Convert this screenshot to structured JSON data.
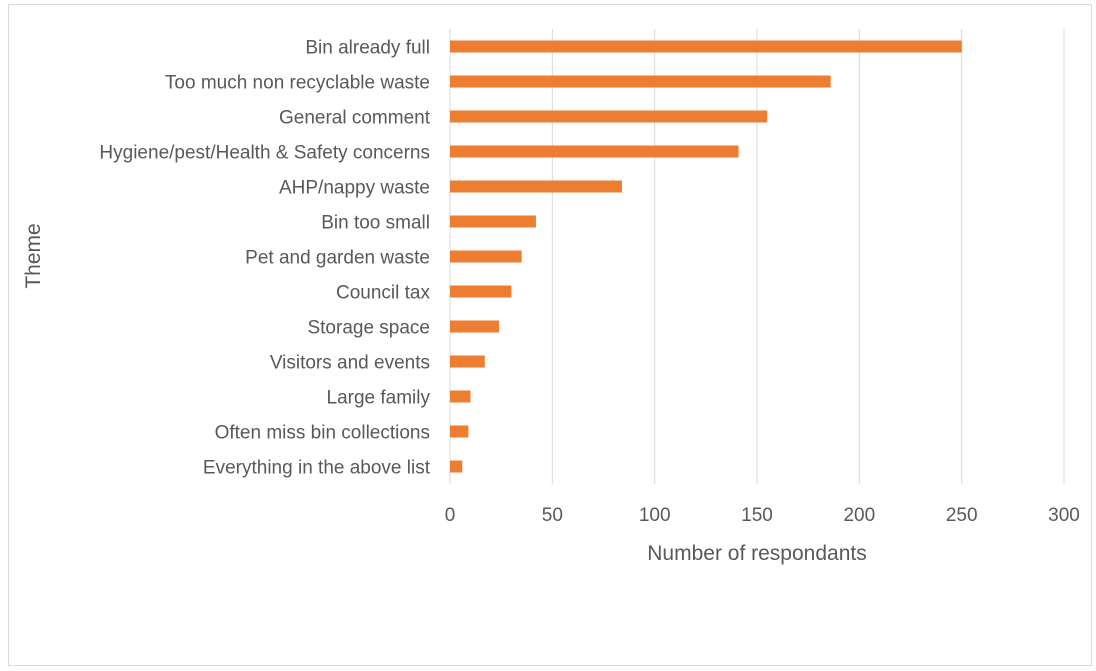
{
  "chart_data": {
    "type": "bar",
    "orientation": "horizontal",
    "title": "",
    "xlabel": "Number of respondants",
    "ylabel": "Theme",
    "xlim": [
      0,
      300
    ],
    "xticks": [
      0,
      50,
      100,
      150,
      200,
      250,
      300
    ],
    "grid": "vertical",
    "legend": "none",
    "bar_color": "#ED7D31",
    "categories": [
      "Bin already full",
      "Too much non recyclable waste",
      "General comment",
      "Hygiene/pest/Health & Safety concerns",
      "AHP/nappy waste",
      "Bin too small",
      "Pet and garden waste",
      "Council tax",
      "Storage space",
      "Visitors and events",
      "Large family",
      "Often miss bin collections",
      "Everything in the above list"
    ],
    "values": [
      250,
      186,
      155,
      141,
      84,
      42,
      35,
      30,
      24,
      17,
      10,
      9,
      6
    ]
  }
}
